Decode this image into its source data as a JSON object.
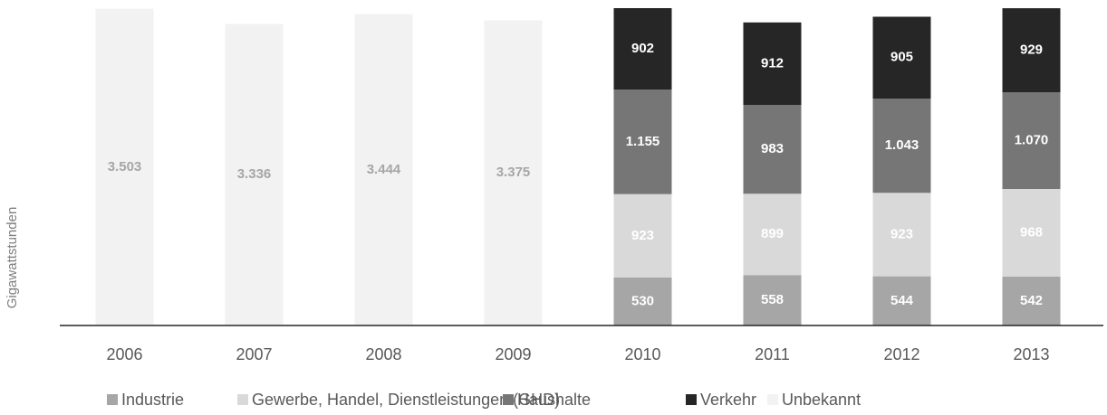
{
  "chart_data": {
    "type": "stacked_bar",
    "y_label": "Gigawattstunden",
    "categories": [
      "2006",
      "2007",
      "2008",
      "2009",
      "2010",
      "2011",
      "2012",
      "2013"
    ],
    "series": [
      {
        "name": "Industrie",
        "color": "#a6a6a6",
        "label_color": "#ffffff",
        "values": [
          null,
          null,
          null,
          null,
          530,
          558,
          544,
          542
        ],
        "value_labels": [
          null,
          null,
          null,
          null,
          "530",
          "558",
          "544",
          "542"
        ]
      },
      {
        "name": "Gewerbe, Handel, Dienstleistungen (GHD)",
        "color": "#d9d9d9",
        "label_color": "#ffffff",
        "values": [
          null,
          null,
          null,
          null,
          923,
          899,
          923,
          968
        ],
        "value_labels": [
          null,
          null,
          null,
          null,
          "923",
          "899",
          "923",
          "968"
        ]
      },
      {
        "name": "Haushalte",
        "color": "#767676",
        "label_color": "#ffffff",
        "values": [
          null,
          null,
          null,
          null,
          1155,
          983,
          1043,
          1070
        ],
        "value_labels": [
          null,
          null,
          null,
          null,
          "1.155",
          "983",
          "1.043",
          "1.070"
        ]
      },
      {
        "name": "Verkehr",
        "color": "#262626",
        "label_color": "#ffffff",
        "values": [
          null,
          null,
          null,
          null,
          902,
          912,
          905,
          929
        ],
        "value_labels": [
          null,
          null,
          null,
          null,
          "902",
          "912",
          "905",
          "929"
        ]
      },
      {
        "name": "Unbekannt",
        "color": "#f2f2f2",
        "label_color": "#a6a6a6",
        "values": [
          3503,
          3336,
          3444,
          3375,
          null,
          null,
          null,
          null
        ],
        "value_labels": [
          "3.503",
          "3.336",
          "3.444",
          "3.375",
          null,
          null,
          null,
          null
        ]
      }
    ],
    "ylim": [
      0,
      3600
    ],
    "legend": "bottom"
  }
}
